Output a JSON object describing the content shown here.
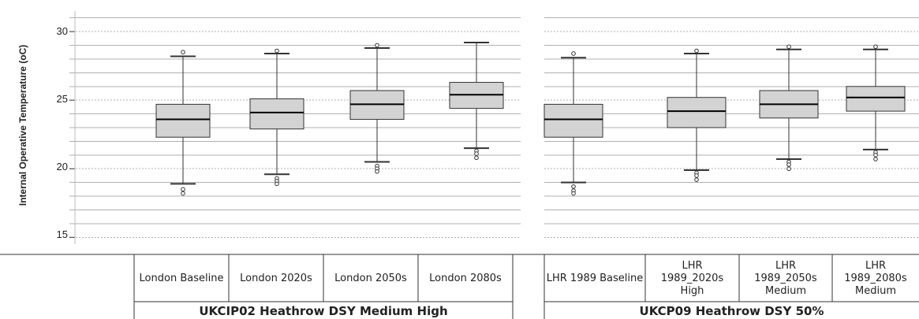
{
  "chart_data": {
    "type": "boxplot",
    "ylabel": "Internal Operative Temperature (oC)",
    "ylim": [
      14.5,
      31.5
    ],
    "yticks": [
      15,
      20,
      25,
      30
    ],
    "grid": true,
    "groups": [
      {
        "name": "UKCIP02 Heathrow DSY Medium High",
        "categories": [
          {
            "label": "London Baseline",
            "q1": 22.3,
            "median": 23.6,
            "q3": 24.7,
            "whisker_low": 18.9,
            "whisker_high": 28.2,
            "outliers": [
              18.5,
              18.2,
              28.5
            ]
          },
          {
            "label": "London 2020s",
            "q1": 22.9,
            "median": 24.1,
            "q3": 25.1,
            "whisker_low": 19.6,
            "whisker_high": 28.4,
            "outliers": [
              19.3,
              19.1,
              18.9,
              28.6
            ]
          },
          {
            "label": "London 2050s",
            "q1": 23.6,
            "median": 24.7,
            "q3": 25.7,
            "whisker_low": 20.5,
            "whisker_high": 28.8,
            "outliers": [
              20.2,
              20.0,
              19.8,
              29.0
            ]
          },
          {
            "label": "London 2080s",
            "q1": 24.4,
            "median": 25.4,
            "q3": 26.3,
            "whisker_low": 21.5,
            "whisker_high": 29.2,
            "outliers": [
              21.3,
              21.1,
              20.8
            ]
          }
        ]
      },
      {
        "name": "UKCP09 Heathrow DSY 50%",
        "categories": [
          {
            "label": "LHR 1989 Baseline",
            "q1": 22.3,
            "median": 23.6,
            "q3": 24.7,
            "whisker_low": 19.0,
            "whisker_high": 28.1,
            "outliers": [
              18.7,
              18.4,
              18.2,
              28.4
            ]
          },
          {
            "label": "LHR 1989_2020s High",
            "q1": 23.0,
            "median": 24.2,
            "q3": 25.2,
            "whisker_low": 19.9,
            "whisker_high": 28.4,
            "outliers": [
              19.7,
              19.5,
              19.2,
              28.6
            ]
          },
          {
            "label": "LHR 1989_2050s Medium",
            "q1": 23.7,
            "median": 24.7,
            "q3": 25.7,
            "whisker_low": 20.7,
            "whisker_high": 28.7,
            "outliers": [
              20.5,
              20.3,
              20.0,
              28.9
            ]
          },
          {
            "label": "LHR 1989_2080s Medium",
            "q1": 24.2,
            "median": 25.2,
            "q3": 26.0,
            "whisker_low": 21.4,
            "whisker_high": 28.7,
            "outliers": [
              21.2,
              21.0,
              20.7,
              28.9
            ]
          }
        ]
      }
    ]
  },
  "labels": {
    "g0": [
      "London Baseline",
      "London 2020s",
      "London 2050s",
      "London 2080s"
    ],
    "g1": [
      "LHR 1989 Baseline",
      "LHR\n1989_2020s\nHigh",
      "LHR\n1989_2050s\nMedium",
      "LHR\n1989_2080s\nMedium"
    ]
  },
  "colors": {
    "box_fill": "#d3d3d3",
    "box_stroke": "#333333",
    "grid": "#b0b0b0",
    "text": "#222222"
  }
}
